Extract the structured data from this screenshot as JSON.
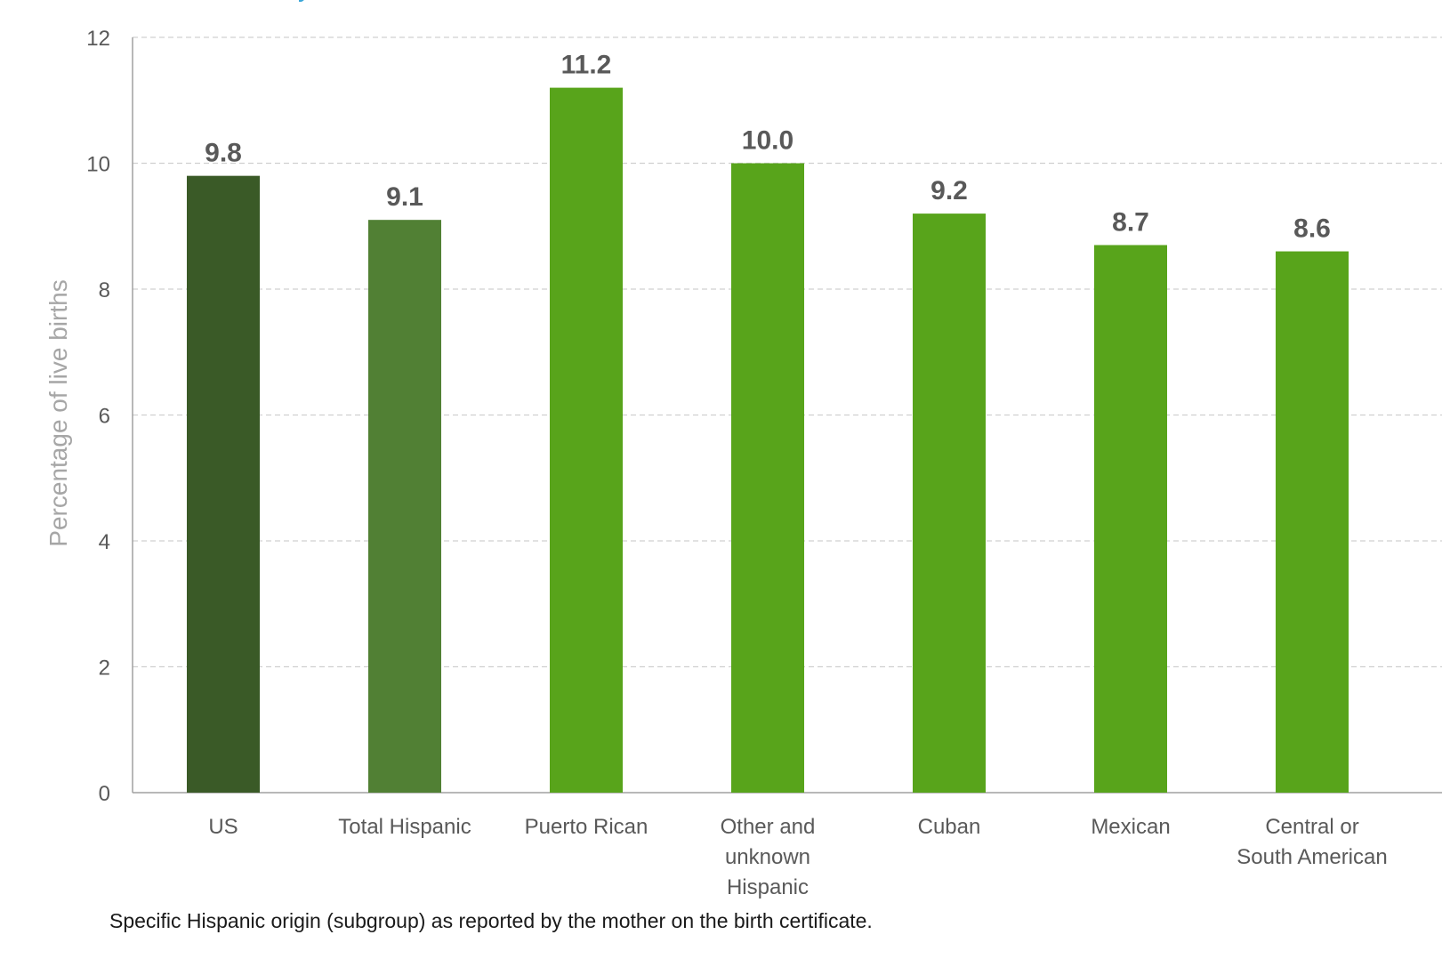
{
  "chart_data": {
    "type": "bar",
    "categories": [
      "US",
      "Total Hispanic",
      "Puerto Rican",
      "Other and unknown Hispanic",
      "Cuban",
      "Mexican",
      "Central or South American"
    ],
    "category_lines": [
      [
        "US"
      ],
      [
        "Total Hispanic"
      ],
      [
        "Puerto Rican"
      ],
      [
        "Other and",
        "unknown",
        "Hispanic"
      ],
      [
        "Cuban"
      ],
      [
        "Mexican"
      ],
      [
        "Central or",
        "South American"
      ]
    ],
    "values": [
      9.8,
      9.1,
      11.2,
      10.0,
      9.2,
      8.7,
      8.6
    ],
    "value_labels": [
      "9.8",
      "9.1",
      "11.2",
      "10.0",
      "9.2",
      "8.7",
      "8.6"
    ],
    "bar_colors": [
      "#3a5a27",
      "#518034",
      "#58a41b",
      "#58a41b",
      "#58a41b",
      "#58a41b",
      "#58a41b"
    ],
    "ylabel": "Percentage of live births",
    "xlabel": "",
    "ylim": [
      0,
      12
    ],
    "yticks": [
      0,
      2,
      4,
      6,
      8,
      10,
      12
    ],
    "grid": true
  },
  "footnote": "Specific Hispanic origin (subgroup) as reported by the mother on the birth certificate."
}
